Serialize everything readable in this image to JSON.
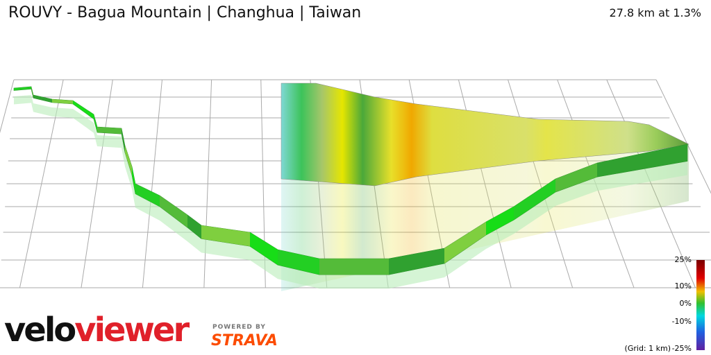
{
  "header": {
    "title": "ROUVY - Bagua Mountain | Changhua | Taiwan",
    "stats": "27.8 km at 1.3%"
  },
  "legend": {
    "labels": [
      "25%",
      "10%",
      "0%",
      "-10%",
      "-25%"
    ],
    "grid_note": "(Grid: 1 km)"
  },
  "branding": {
    "logo_left": "velo",
    "logo_right": "viewer",
    "powered_by": "POWERED BY",
    "strava": "STRAVA"
  }
}
